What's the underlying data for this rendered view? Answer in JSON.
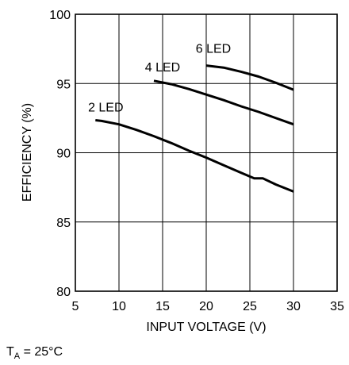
{
  "chart_data": {
    "type": "line",
    "title": "",
    "xlabel": "INPUT VOLTAGE (V)",
    "ylabel": "EFFICIENCY (%)",
    "xlim": [
      5,
      35
    ],
    "ylim": [
      80,
      100
    ],
    "xticks": [
      5,
      10,
      15,
      20,
      25,
      30,
      35
    ],
    "yticks": [
      80,
      85,
      90,
      95,
      100
    ],
    "grid": true,
    "legend": "none (series labelled directly on curves)",
    "series": [
      {
        "name": "2 LED",
        "x": [
          7.3,
          8,
          10,
          12,
          14,
          16,
          18,
          20,
          22,
          24,
          25.5,
          26.5,
          28,
          30
        ],
        "y": [
          92.35,
          92.3,
          92.05,
          91.65,
          91.2,
          90.7,
          90.15,
          89.65,
          89.1,
          88.55,
          88.15,
          88.15,
          87.7,
          87.2
        ]
      },
      {
        "name": "4 LED",
        "x": [
          14,
          16,
          18,
          20,
          22,
          24,
          26,
          28,
          30
        ],
        "y": [
          95.2,
          94.95,
          94.6,
          94.2,
          93.8,
          93.35,
          92.95,
          92.5,
          92.05
        ]
      },
      {
        "name": "6 LED",
        "x": [
          20,
          22,
          24,
          26,
          28,
          30
        ],
        "y": [
          96.3,
          96.15,
          95.85,
          95.5,
          95.05,
          94.55
        ]
      }
    ],
    "annotations": [
      {
        "text": "2 LED",
        "series": 0
      },
      {
        "text": "4 LED",
        "series": 1
      },
      {
        "text": "6 LED",
        "series": 2
      }
    ],
    "footnote": {
      "base": "T",
      "sub": "A",
      "rest": " = 25°C"
    },
    "colors": {
      "line": "#000000",
      "grid": "#000000",
      "background": "#ffffff"
    }
  }
}
